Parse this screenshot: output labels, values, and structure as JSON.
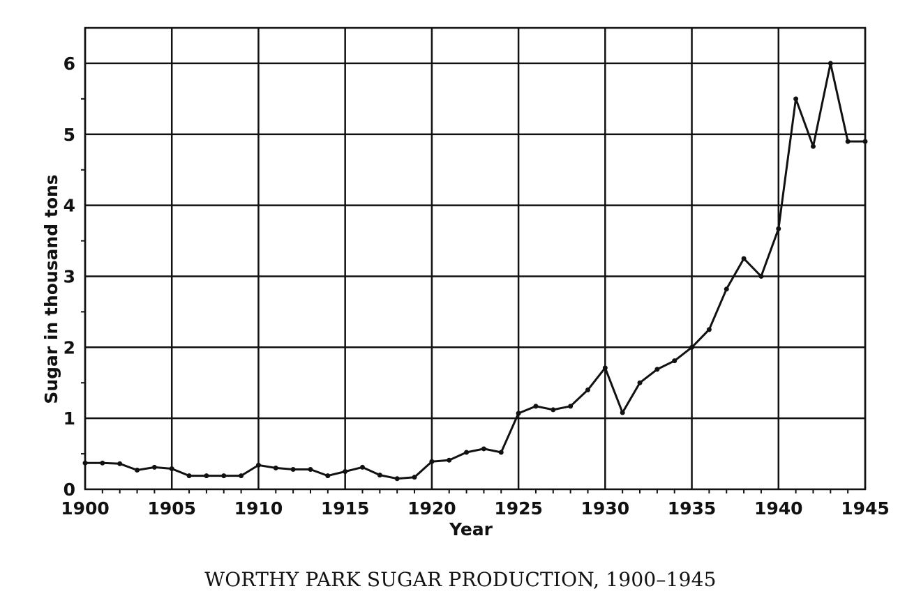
{
  "chart_data": {
    "type": "line",
    "title": "WORTHY PARK SUGAR PRODUCTION, 1900–1945",
    "xlabel": "Year",
    "ylabel": "Sugar in thousand tons",
    "xlim": [
      1900,
      1945
    ],
    "ylim": [
      0,
      6.5
    ],
    "x_ticks": [
      1900,
      1905,
      1910,
      1915,
      1920,
      1925,
      1930,
      1935,
      1940,
      1945
    ],
    "y_ticks": [
      0,
      1,
      2,
      3,
      4,
      5,
      6
    ],
    "grid": true,
    "series": [
      {
        "x": [
          1900,
          1901,
          1902,
          1903,
          1904,
          1905,
          1906,
          1907,
          1908,
          1909,
          1910,
          1911,
          1912,
          1913,
          1914,
          1915,
          1916,
          1917,
          1918,
          1919,
          1920,
          1921,
          1922,
          1923,
          1924,
          1925,
          1926,
          1927,
          1928,
          1929,
          1930,
          1931,
          1932,
          1933,
          1934,
          1935,
          1936,
          1937,
          1938,
          1939,
          1940,
          1941,
          1942,
          1943,
          1944,
          1945
        ],
        "values": [
          0.37,
          0.37,
          0.36,
          0.27,
          0.31,
          0.29,
          0.19,
          0.19,
          0.19,
          0.19,
          0.34,
          0.3,
          0.28,
          0.28,
          0.19,
          0.25,
          0.31,
          0.2,
          0.15,
          0.17,
          0.39,
          0.41,
          0.52,
          0.57,
          0.52,
          1.07,
          1.17,
          1.12,
          1.17,
          1.4,
          1.71,
          1.08,
          1.5,
          1.69,
          1.81,
          2.0,
          2.25,
          2.82,
          3.25,
          3.0,
          3.67,
          5.5,
          4.83,
          6.0,
          4.9,
          4.9
        ]
      }
    ]
  }
}
